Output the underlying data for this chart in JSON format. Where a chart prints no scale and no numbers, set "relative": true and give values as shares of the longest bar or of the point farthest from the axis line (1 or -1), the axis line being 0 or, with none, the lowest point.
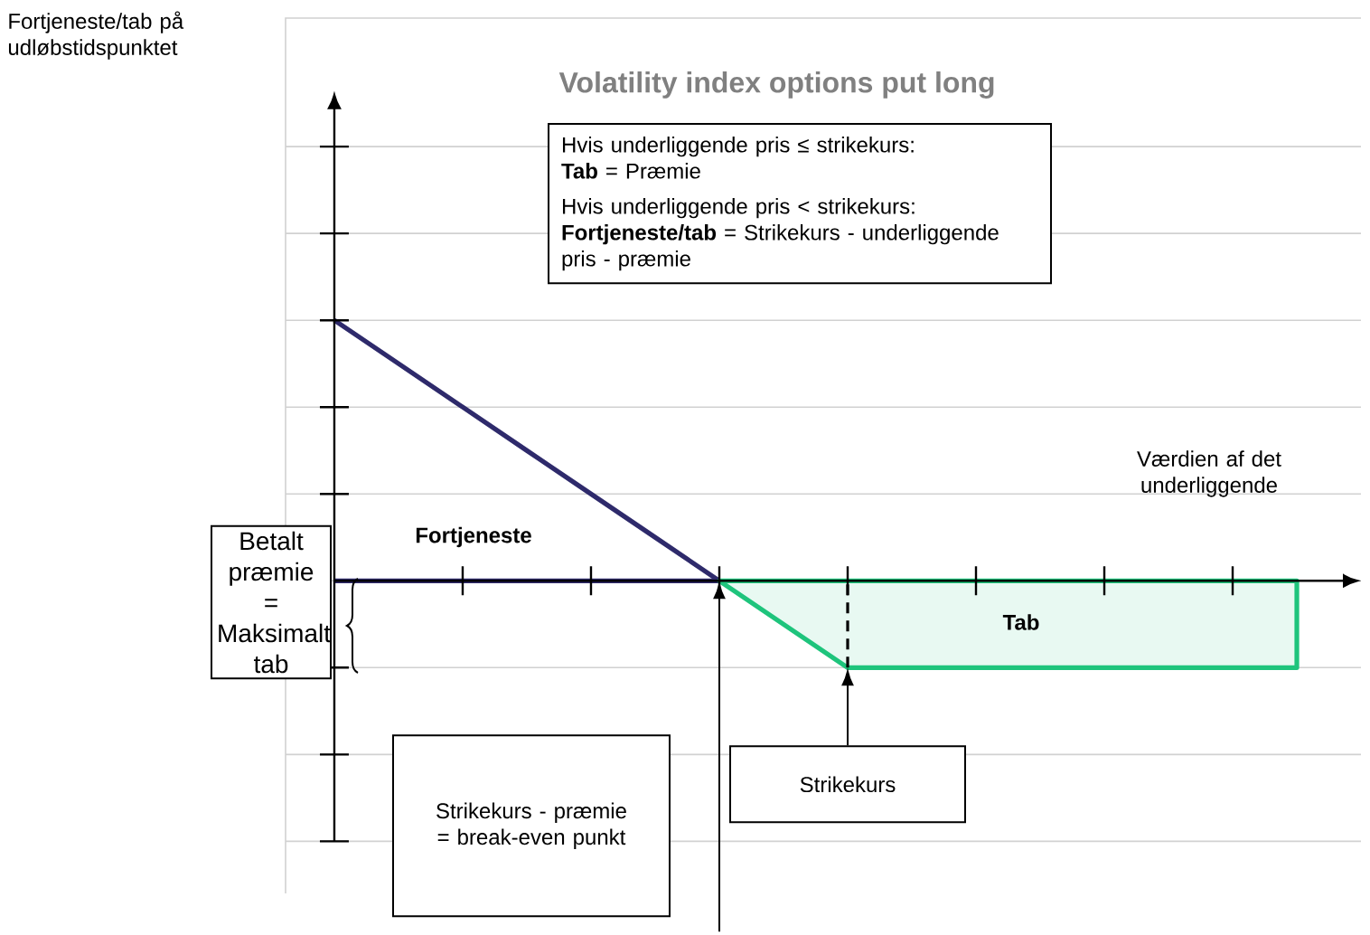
{
  "chart_data": {
    "type": "line",
    "relative": true,
    "grid": "y",
    "title": "Volatility index options put long",
    "xlabel": "Værdien af det underliggende",
    "categories": [
      null,
      null,
      null,
      null,
      null,
      null,
      null,
      null,
      null,
      null,
      null,
      null,
      null,
      null,
      null,
      null
    ],
    "series": [
      {
        "color": "#2e2a6b",
        "values": [
          1,
          0.8333,
          0.6667,
          0.5,
          0.3333,
          0.1667,
          0,
          null,
          null,
          null,
          null,
          null,
          null,
          null,
          null,
          null
        ]
      },
      {
        "color": "#2e2a6b",
        "values": [
          0,
          0,
          0,
          0,
          0,
          0,
          0,
          null,
          null,
          null,
          null,
          null,
          null,
          null,
          null,
          null
        ]
      },
      {
        "type": "area",
        "color": "#1ec47c",
        "values": [
          null,
          null,
          null,
          null,
          null,
          null,
          0,
          -0.1667,
          -0.3333,
          -0.3333,
          -0.3333,
          -0.3333,
          -0.3333,
          -0.3333,
          -0.3333,
          -0.3333
        ]
      }
    ],
    "annotations": [
      "Hvis underliggende pris ≤ strikekurs:",
      "**Tab** = Præmie",
      "Hvis underliggende pris < strikekurs:",
      "**Fortjeneste/tab** = Strikekurs - underliggende pris - præmie",
      "Fortjeneste",
      "Tab",
      "Betalt præmie = Maksimalt tab",
      "Strikekurs",
      "Strikekurs - præmie = break-even punkt",
      "Fortjeneste/tab på udløbstidspunktet"
    ]
  }
}
